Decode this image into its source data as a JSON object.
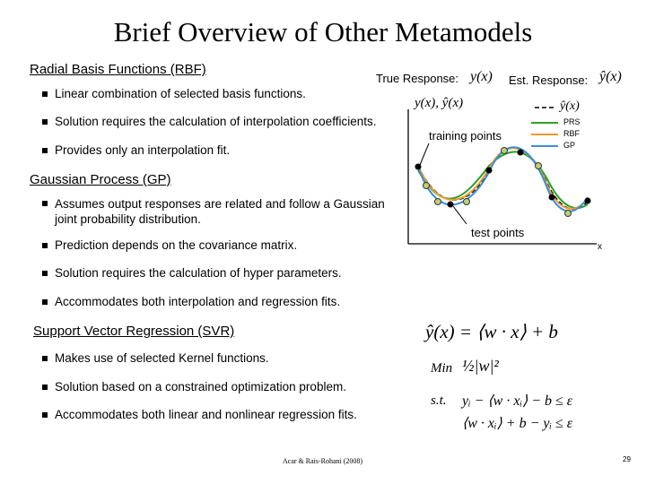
{
  "title": "Brief Overview of Other Metamodels",
  "sections": [
    {
      "heading": "Radial Basis Functions (RBF)",
      "bullets": [
        "Linear combination of selected basis functions.",
        "Solution requires the calculation of interpolation coefficients.",
        "Provides only an interpolation fit."
      ]
    },
    {
      "heading": "Gaussian Process (GP)",
      "bullets": [
        "Assumes output responses are related and follow a Gaussian joint probability distribution.",
        "Prediction depends on the covariance matrix.",
        "Solution requires the calculation of hyper parameters.",
        "Accommodates both interpolation and regression fits."
      ]
    },
    {
      "heading": "Support Vector Regression (SVR)",
      "bullets": [
        "Makes use of selected Kernel functions.",
        "Solution based on a constrained optimization problem.",
        "Accommodates both linear and nonlinear regression fits."
      ]
    }
  ],
  "figure": {
    "true_label": "True Response:",
    "true_symbol": "y(x)",
    "est_label": "Est. Response:",
    "est_symbol": "ŷ(x)",
    "y_axis": "y(x), ŷ(x)",
    "x_axis": "x",
    "legend": [
      "PRS",
      "RBF",
      "GP"
    ],
    "training": "training points",
    "test": "test points"
  },
  "formulas": {
    "model": "ŷ(x) = ⟨w · x⟩ + b",
    "min": "Min",
    "objective": "½|w|²",
    "st": "s.t.",
    "c1": "yᵢ − ⟨w · xᵢ⟩ − b ≤ ε",
    "c2": "⟨w · xᵢ⟩ + b − yᵢ ≤ ε"
  },
  "footer": {
    "citation": "Acar & Rais-Rohani (2008)",
    "page": "29"
  }
}
